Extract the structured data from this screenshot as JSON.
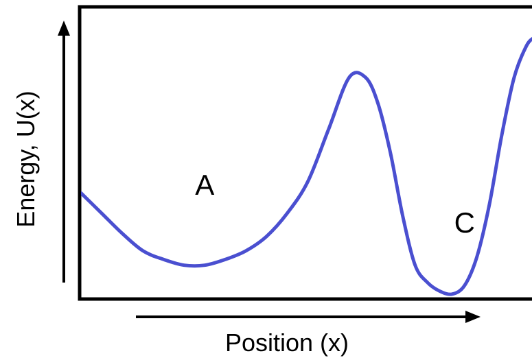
{
  "chart_data": {
    "type": "line",
    "title": "",
    "xlabel": "Position (x)",
    "ylabel": "Energy, U(x)",
    "grid": false,
    "legend": "none",
    "colors": {
      "curve": "#4a4fd0",
      "frame": "#000000",
      "text": "#000000"
    },
    "annotations": [
      {
        "text": "A",
        "x": 3.0,
        "y": 3.8
      },
      {
        "text": "C",
        "x": 9.3,
        "y": 2.5
      }
    ],
    "xlim": [
      0,
      11
    ],
    "ylim": [
      0,
      10
    ],
    "series": [
      {
        "x": [
          0.0,
          0.5,
          1.0,
          1.5,
          2.0,
          2.5,
          3.0,
          3.5,
          4.0,
          4.5,
          5.0,
          5.5,
          6.0,
          6.5,
          6.9,
          7.2,
          7.5,
          7.8,
          8.1,
          8.4,
          8.7,
          9.0,
          9.3,
          9.6,
          9.9,
          10.2,
          10.5,
          10.8,
          11.0
        ],
        "y": [
          3.6,
          2.9,
          2.2,
          1.6,
          1.3,
          1.1,
          1.1,
          1.3,
          1.6,
          2.1,
          2.9,
          4.0,
          5.8,
          7.6,
          7.6,
          6.7,
          5.0,
          2.8,
          1.1,
          0.5,
          0.2,
          0.1,
          0.4,
          1.4,
          3.2,
          5.6,
          7.6,
          8.7,
          9.0
        ]
      }
    ]
  }
}
